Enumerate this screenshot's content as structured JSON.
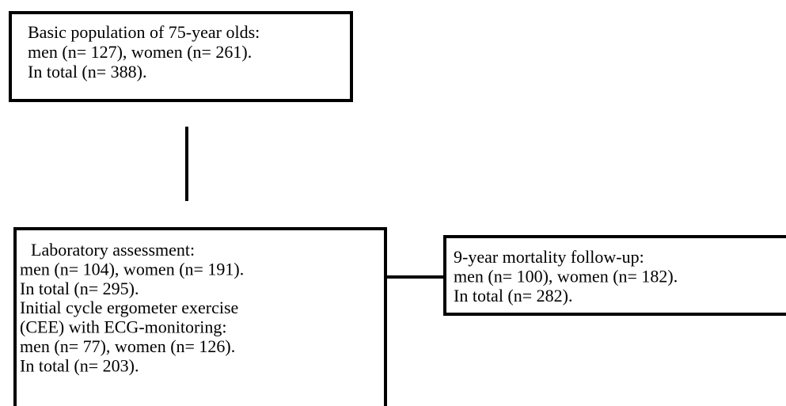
{
  "nodes": [
    {
      "lines": [
        "Basic population of 75-year olds:",
        "men (n= 127), women (n= 261).",
        "In total (n= 388)."
      ]
    },
    {
      "lines": [
        "Laboratory assessment:",
        "men (n= 104), women (n= 191).",
        "In total (n= 295).",
        "Initial cycle ergometer exercise",
        "(CEE) with ECG-monitoring:",
        "men (n= 77), women (n= 126).",
        "In total (n= 203)."
      ]
    },
    {
      "lines": [
        "9-year mortality follow-up:",
        "men (n= 100), women (n= 182).",
        "In total (n= 282)."
      ]
    }
  ]
}
